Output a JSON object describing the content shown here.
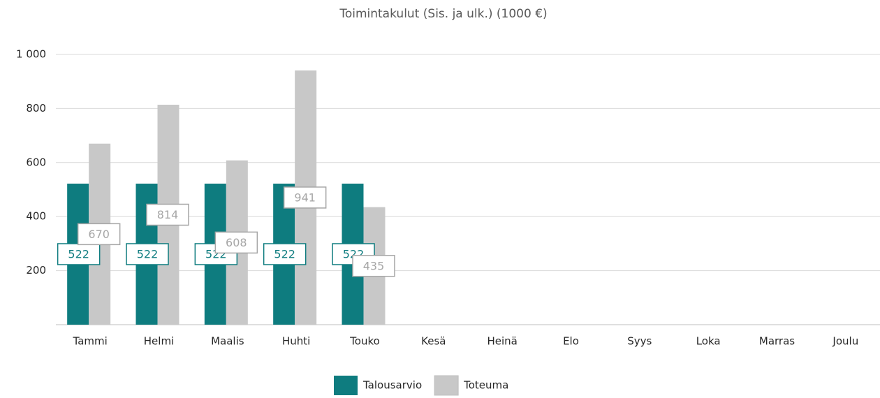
{
  "chart_data": {
    "type": "bar",
    "title": "Toimintakulut (Sis. ja ulk.) (1000 €)",
    "categories": [
      "Tammi",
      "Helmi",
      "Maalis",
      "Huhti",
      "Touko",
      "Kesä",
      "Heinä",
      "Elo",
      "Syys",
      "Loka",
      "Marras",
      "Joulu"
    ],
    "series": [
      {
        "name": "Talousarvio",
        "color": "#0e7c7f",
        "values": [
          522,
          522,
          522,
          522,
          522,
          null,
          null,
          null,
          null,
          null,
          null,
          null
        ]
      },
      {
        "name": "Toteuma",
        "color": "#c8c8c8",
        "values": [
          670,
          814,
          608,
          941,
          435,
          null,
          null,
          null,
          null,
          null,
          null,
          null
        ]
      }
    ],
    "ylim": [
      0,
      1000
    ],
    "yticks": [
      200,
      400,
      600,
      800,
      {
        "value": 1000,
        "label": "1 000"
      }
    ],
    "grid": true,
    "legend": "bottom"
  }
}
